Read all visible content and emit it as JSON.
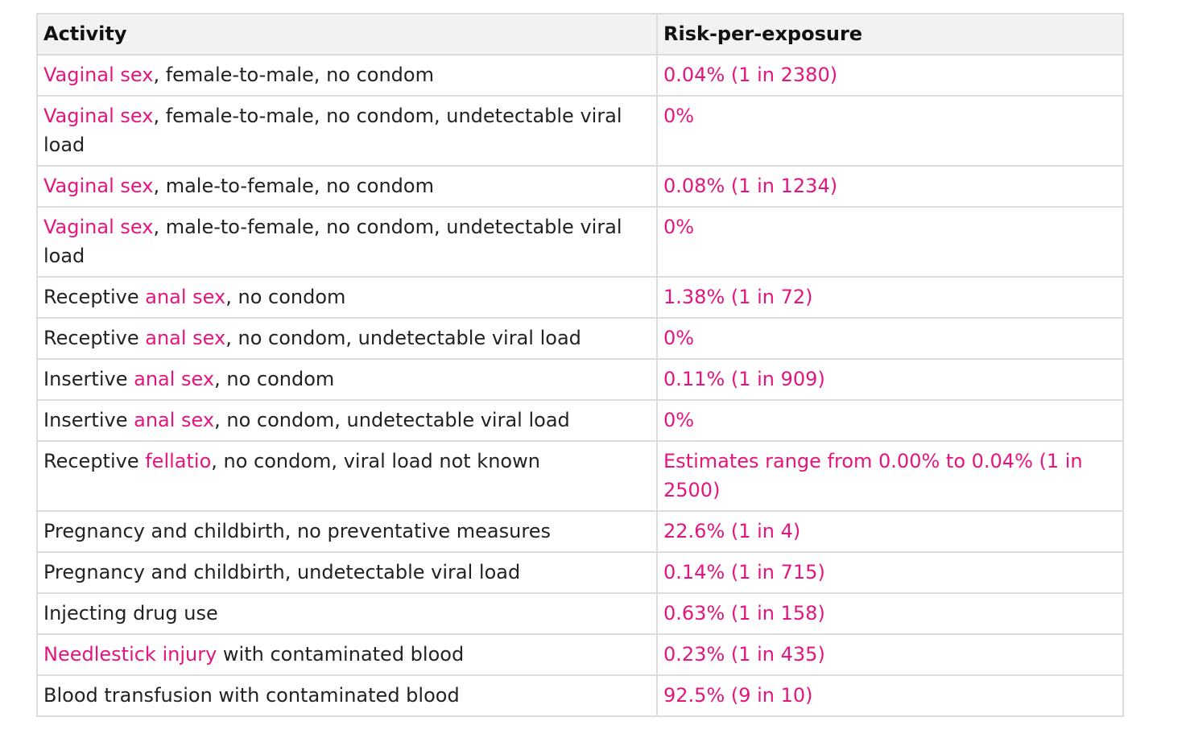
{
  "table": {
    "headers": {
      "activity": "Activity",
      "risk": "Risk-per-exposure"
    },
    "rows": [
      {
        "link": "Vaginal sex",
        "prefix": "",
        "suffix": ", female-to-male, no condom",
        "risk": "0.04% (1 in 2380)"
      },
      {
        "link": "Vaginal sex",
        "prefix": "",
        "suffix": ", female-to-male, no condom, undetectable viral load",
        "risk": "0%"
      },
      {
        "link": "Vaginal sex",
        "prefix": "",
        "suffix": ", male-to-female, no condom",
        "risk": "0.08% (1 in 1234)"
      },
      {
        "link": "Vaginal sex",
        "prefix": "",
        "suffix": ", male-to-female, no condom, undetectable viral load",
        "risk": "0%"
      },
      {
        "link": "anal sex",
        "prefix": "Receptive ",
        "suffix": ", no condom",
        "risk": "1.38% (1 in 72)"
      },
      {
        "link": "anal sex",
        "prefix": "Receptive ",
        "suffix": ", no condom, undetectable viral load",
        "risk": "0%"
      },
      {
        "link": "anal sex",
        "prefix": "Insertive ",
        "suffix": ", no condom",
        "risk": "0.11% (1 in 909)"
      },
      {
        "link": "anal sex",
        "prefix": "Insertive ",
        "suffix": ", no condom, undetectable viral load",
        "risk": "0%"
      },
      {
        "link": "fellatio",
        "prefix": "Receptive ",
        "suffix": ", no condom, viral load not known",
        "risk": "Estimates range from 0.00% to 0.04% (1 in 2500)"
      },
      {
        "link": "",
        "prefix": "Pregnancy and childbirth, no preventative measures",
        "suffix": "",
        "risk": "22.6% (1 in 4)"
      },
      {
        "link": "",
        "prefix": "Pregnancy and childbirth, undetectable viral load",
        "suffix": "",
        "risk": "0.14% (1 in 715)"
      },
      {
        "link": "",
        "prefix": "Injecting drug use",
        "suffix": "",
        "risk": "0.63% (1 in 158)"
      },
      {
        "link": "Needlestick injury",
        "prefix": "",
        "suffix": " with contaminated blood",
        "risk": "0.23% (1 in 435)"
      },
      {
        "link": "",
        "prefix": "Blood transfusion with contaminated blood",
        "suffix": "",
        "risk": "92.5% (9 in 10)"
      }
    ]
  },
  "colors": {
    "link": "#e5157f",
    "text": "#222222",
    "header_bg": "#f2f2f2",
    "border": "#dcdcdc"
  }
}
